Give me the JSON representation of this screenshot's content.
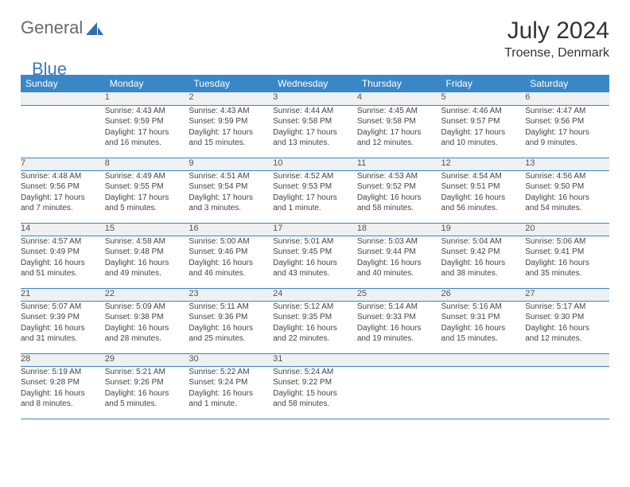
{
  "brand": {
    "word1": "General",
    "word2": "Blue"
  },
  "title": "July 2024",
  "location": "Troense, Denmark",
  "colors": {
    "header_bg": "#3a87c7",
    "header_fg": "#ffffff",
    "daynum_bg": "#eef0f1",
    "border": "#3a87c7",
    "text": "#444444"
  },
  "day_names": [
    "Sunday",
    "Monday",
    "Tuesday",
    "Wednesday",
    "Thursday",
    "Friday",
    "Saturday"
  ],
  "weeks": [
    {
      "nums": [
        "",
        "1",
        "2",
        "3",
        "4",
        "5",
        "6"
      ],
      "cells": [
        [],
        [
          "Sunrise: 4:43 AM",
          "Sunset: 9:59 PM",
          "Daylight: 17 hours",
          "and 16 minutes."
        ],
        [
          "Sunrise: 4:43 AM",
          "Sunset: 9:59 PM",
          "Daylight: 17 hours",
          "and 15 minutes."
        ],
        [
          "Sunrise: 4:44 AM",
          "Sunset: 9:58 PM",
          "Daylight: 17 hours",
          "and 13 minutes."
        ],
        [
          "Sunrise: 4:45 AM",
          "Sunset: 9:58 PM",
          "Daylight: 17 hours",
          "and 12 minutes."
        ],
        [
          "Sunrise: 4:46 AM",
          "Sunset: 9:57 PM",
          "Daylight: 17 hours",
          "and 10 minutes."
        ],
        [
          "Sunrise: 4:47 AM",
          "Sunset: 9:56 PM",
          "Daylight: 17 hours",
          "and 9 minutes."
        ]
      ]
    },
    {
      "nums": [
        "7",
        "8",
        "9",
        "10",
        "11",
        "12",
        "13"
      ],
      "cells": [
        [
          "Sunrise: 4:48 AM",
          "Sunset: 9:56 PM",
          "Daylight: 17 hours",
          "and 7 minutes."
        ],
        [
          "Sunrise: 4:49 AM",
          "Sunset: 9:55 PM",
          "Daylight: 17 hours",
          "and 5 minutes."
        ],
        [
          "Sunrise: 4:51 AM",
          "Sunset: 9:54 PM",
          "Daylight: 17 hours",
          "and 3 minutes."
        ],
        [
          "Sunrise: 4:52 AM",
          "Sunset: 9:53 PM",
          "Daylight: 17 hours",
          "and 1 minute."
        ],
        [
          "Sunrise: 4:53 AM",
          "Sunset: 9:52 PM",
          "Daylight: 16 hours",
          "and 58 minutes."
        ],
        [
          "Sunrise: 4:54 AM",
          "Sunset: 9:51 PM",
          "Daylight: 16 hours",
          "and 56 minutes."
        ],
        [
          "Sunrise: 4:56 AM",
          "Sunset: 9:50 PM",
          "Daylight: 16 hours",
          "and 54 minutes."
        ]
      ]
    },
    {
      "nums": [
        "14",
        "15",
        "16",
        "17",
        "18",
        "19",
        "20"
      ],
      "cells": [
        [
          "Sunrise: 4:57 AM",
          "Sunset: 9:49 PM",
          "Daylight: 16 hours",
          "and 51 minutes."
        ],
        [
          "Sunrise: 4:58 AM",
          "Sunset: 9:48 PM",
          "Daylight: 16 hours",
          "and 49 minutes."
        ],
        [
          "Sunrise: 5:00 AM",
          "Sunset: 9:46 PM",
          "Daylight: 16 hours",
          "and 46 minutes."
        ],
        [
          "Sunrise: 5:01 AM",
          "Sunset: 9:45 PM",
          "Daylight: 16 hours",
          "and 43 minutes."
        ],
        [
          "Sunrise: 5:03 AM",
          "Sunset: 9:44 PM",
          "Daylight: 16 hours",
          "and 40 minutes."
        ],
        [
          "Sunrise: 5:04 AM",
          "Sunset: 9:42 PM",
          "Daylight: 16 hours",
          "and 38 minutes."
        ],
        [
          "Sunrise: 5:06 AM",
          "Sunset: 9:41 PM",
          "Daylight: 16 hours",
          "and 35 minutes."
        ]
      ]
    },
    {
      "nums": [
        "21",
        "22",
        "23",
        "24",
        "25",
        "26",
        "27"
      ],
      "cells": [
        [
          "Sunrise: 5:07 AM",
          "Sunset: 9:39 PM",
          "Daylight: 16 hours",
          "and 31 minutes."
        ],
        [
          "Sunrise: 5:09 AM",
          "Sunset: 9:38 PM",
          "Daylight: 16 hours",
          "and 28 minutes."
        ],
        [
          "Sunrise: 5:11 AM",
          "Sunset: 9:36 PM",
          "Daylight: 16 hours",
          "and 25 minutes."
        ],
        [
          "Sunrise: 5:12 AM",
          "Sunset: 9:35 PM",
          "Daylight: 16 hours",
          "and 22 minutes."
        ],
        [
          "Sunrise: 5:14 AM",
          "Sunset: 9:33 PM",
          "Daylight: 16 hours",
          "and 19 minutes."
        ],
        [
          "Sunrise: 5:16 AM",
          "Sunset: 9:31 PM",
          "Daylight: 16 hours",
          "and 15 minutes."
        ],
        [
          "Sunrise: 5:17 AM",
          "Sunset: 9:30 PM",
          "Daylight: 16 hours",
          "and 12 minutes."
        ]
      ]
    },
    {
      "nums": [
        "28",
        "29",
        "30",
        "31",
        "",
        "",
        ""
      ],
      "cells": [
        [
          "Sunrise: 5:19 AM",
          "Sunset: 9:28 PM",
          "Daylight: 16 hours",
          "and 8 minutes."
        ],
        [
          "Sunrise: 5:21 AM",
          "Sunset: 9:26 PM",
          "Daylight: 16 hours",
          "and 5 minutes."
        ],
        [
          "Sunrise: 5:22 AM",
          "Sunset: 9:24 PM",
          "Daylight: 16 hours",
          "and 1 minute."
        ],
        [
          "Sunrise: 5:24 AM",
          "Sunset: 9:22 PM",
          "Daylight: 15 hours",
          "and 58 minutes."
        ],
        [],
        [],
        []
      ]
    }
  ]
}
